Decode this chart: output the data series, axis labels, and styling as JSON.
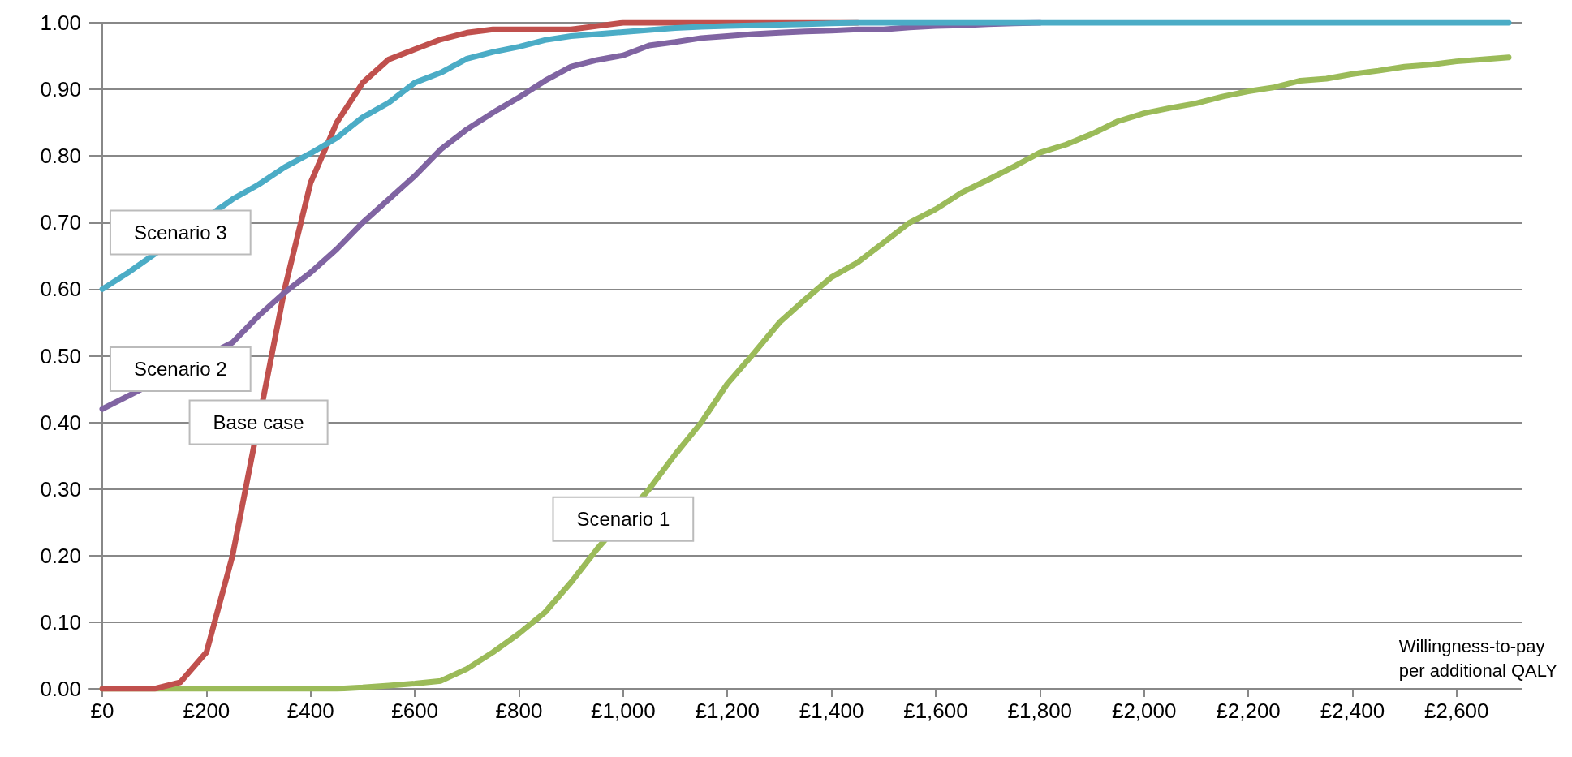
{
  "chart_data": {
    "type": "line",
    "xlabel": "Willingness-to-pay\nper additional QALY",
    "x": [
      0,
      50,
      100,
      150,
      200,
      250,
      300,
      350,
      400,
      450,
      500,
      550,
      600,
      650,
      700,
      750,
      800,
      850,
      900,
      950,
      1000,
      1050,
      1100,
      1150,
      1200,
      1250,
      1300,
      1350,
      1400,
      1450,
      1500,
      1550,
      1600,
      1650,
      1700,
      1750,
      1800,
      1850,
      1900,
      1950,
      2000,
      2050,
      2100,
      2150,
      2200,
      2250,
      2300,
      2350,
      2400,
      2450,
      2500,
      2550,
      2600,
      2650,
      2700
    ],
    "series": [
      {
        "color": "#9bbb59",
        "values": [
          0,
          0,
          0,
          0,
          0,
          0,
          0,
          0,
          0,
          0,
          0.002,
          0.005,
          0.008,
          0.012,
          0.03,
          0.055,
          0.083,
          0.115,
          0.16,
          0.21,
          null,
          0.3,
          0.352,
          0.4,
          0.458,
          0.503,
          0.55,
          0.585,
          0.618,
          0.64,
          0.67,
          0.7,
          0.72,
          0.745,
          0.764,
          0.784,
          0.805,
          0.817,
          0.833,
          0.852,
          0.864,
          0.872,
          0.879,
          0.889,
          0.897,
          0.903,
          0.913,
          0.916,
          0.923,
          0.928,
          0.934,
          0.937,
          0.942,
          0.945,
          0.948
        ]
      },
      {
        "color": "#c0504d",
        "values": [
          0,
          0,
          0,
          0.01,
          0.055,
          0.2,
          null,
          0.6,
          0.76,
          0.85,
          0.91,
          0.945,
          0.96,
          0.975,
          0.985,
          0.99,
          0.99,
          0.99,
          0.99,
          0.995,
          1,
          1,
          1,
          1,
          1,
          1,
          1,
          1,
          1,
          1,
          null,
          null,
          null,
          null,
          null,
          null,
          null,
          null,
          null,
          null,
          null,
          null,
          null,
          null,
          null,
          null,
          null,
          null,
          null,
          null,
          null,
          null,
          null,
          null,
          null
        ]
      },
      {
        "color": "#8064a2",
        "values": [
          0.42,
          0.44,
          null,
          null,
          null,
          0.52,
          0.56,
          0.595,
          0.625,
          0.66,
          0.7,
          0.735,
          0.77,
          0.81,
          0.84,
          0.865,
          0.888,
          0.913,
          0.934,
          0.944,
          0.951,
          0.966,
          0.971,
          0.977,
          0.98,
          0.983,
          0.985,
          0.987,
          0.988,
          0.99,
          0.99,
          0.993,
          0.995,
          0.996,
          0.998,
          0.999,
          1,
          null,
          null,
          null,
          null,
          null,
          null,
          null,
          null,
          null,
          null,
          null,
          null,
          null,
          null,
          null,
          null,
          null,
          null
        ]
      },
      {
        "color": "#4bacc6",
        "values": [
          0.6,
          0.625,
          null,
          null,
          null,
          0.735,
          0.757,
          0.783,
          0.804,
          0.827,
          0.858,
          0.88,
          0.91,
          0.925,
          0.946,
          0.956,
          0.964,
          0.974,
          0.98,
          0.983,
          0.986,
          0.989,
          0.992,
          0.994,
          0.995,
          0.996,
          0.997,
          0.998,
          0.999,
          1,
          1,
          1,
          1,
          1,
          1,
          1,
          1,
          1,
          1,
          1,
          1,
          1,
          1,
          1,
          1,
          1,
          1,
          1,
          1,
          1,
          1,
          1,
          1,
          1,
          1
        ]
      }
    ],
    "xlim": [
      -25,
      2725
    ],
    "xticks": [
      {
        "value": 0,
        "label": "£0"
      },
      {
        "value": 200,
        "label": "£200"
      },
      {
        "value": 400,
        "label": "£400"
      },
      {
        "value": 600,
        "label": "£600"
      },
      {
        "value": 800,
        "label": "£800"
      },
      {
        "value": 1000,
        "label": "£1,000"
      },
      {
        "value": 1200,
        "label": "£1,200"
      },
      {
        "value": 1400,
        "label": "£1,400"
      },
      {
        "value": 1600,
        "label": "£1,600"
      },
      {
        "value": 1800,
        "label": "£1,800"
      },
      {
        "value": 2000,
        "label": "£2,000"
      },
      {
        "value": 2200,
        "label": "£2,200"
      },
      {
        "value": 2400,
        "label": "£2,400"
      },
      {
        "value": 2600,
        "label": "£2,600"
      }
    ],
    "ylim": [
      0,
      1
    ],
    "yticks": [
      {
        "value": 0,
        "label": "0.00"
      },
      {
        "value": 0.1,
        "label": "0.10"
      },
      {
        "value": 0.2,
        "label": "0.20"
      },
      {
        "value": 0.3,
        "label": "0.30"
      },
      {
        "value": 0.4,
        "label": "0.40"
      },
      {
        "value": 0.5,
        "label": "0.50"
      },
      {
        "value": 0.6,
        "label": "0.60"
      },
      {
        "value": 0.7,
        "label": "0.70"
      },
      {
        "value": 0.8,
        "label": "0.80"
      },
      {
        "value": 0.9,
        "label": "0.90"
      },
      {
        "value": 1,
        "label": "1.00"
      }
    ],
    "grid": "y",
    "marker": "none",
    "line_style": "solid",
    "annotations": [
      {
        "text": "Scenario 3",
        "x": 150,
        "y": 0.685
      },
      {
        "text": "Scenario 2",
        "x": 150,
        "y": 0.48
      },
      {
        "text": "Base case",
        "x": 300,
        "y": 0.4
      },
      {
        "text": "Scenario 1",
        "x": 1000,
        "y": 0.255
      }
    ]
  }
}
